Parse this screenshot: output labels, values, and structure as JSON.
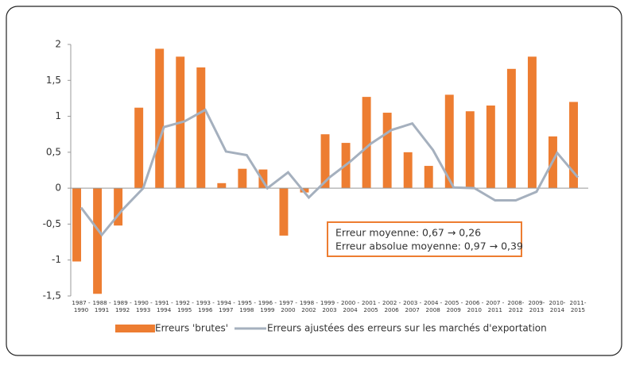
{
  "chart_data": {
    "type": "bar_line",
    "categories": [
      "1987 - 1990",
      "1988 - 1991",
      "1989 - 1992",
      "1990 - 1993",
      "1991 - 1994",
      "1992 - 1995",
      "1993 - 1996",
      "1994 - 1997",
      "1995 - 1998",
      "1996 - 1999",
      "1997 - 2000",
      "1998 - 2002",
      "1999 - 2003",
      "2000 - 2004",
      "2001 - 2005",
      "2002 - 2006",
      "2003 - 2007",
      "2004 - 2008",
      "2005 - 2009",
      "2006 - 2010",
      "2007 - 2011",
      "2008- 2012",
      "2009- 2013",
      "2010- 2014",
      "2011- 2015"
    ],
    "series": [
      {
        "name": "Erreurs 'brutes'",
        "type": "bar",
        "color": "#ed7d31",
        "values": [
          -1.02,
          -1.47,
          -0.52,
          1.12,
          1.94,
          1.83,
          1.68,
          0.07,
          0.27,
          0.26,
          -0.66,
          -0.06,
          0.75,
          0.63,
          1.27,
          1.05,
          0.5,
          0.31,
          1.3,
          1.07,
          1.15,
          1.66,
          1.83,
          0.72,
          1.2
        ]
      },
      {
        "name": "Erreurs ajustées des erreurs sur les marchés d'exportation",
        "type": "line",
        "color": "#a5b0be",
        "values": [
          -0.27,
          -0.65,
          -0.3,
          0.0,
          0.85,
          0.93,
          1.09,
          0.51,
          0.46,
          0.0,
          0.22,
          -0.13,
          0.15,
          0.37,
          0.62,
          0.81,
          0.9,
          0.53,
          0.01,
          0.0,
          -0.17,
          -0.17,
          -0.05,
          0.49,
          0.15
        ]
      }
    ],
    "ylim": [
      -1.5,
      2
    ],
    "yticks": [
      {
        "value": -1.5,
        "label": "-1,5"
      },
      -1,
      {
        "value": -0.5,
        "label": "-0,5"
      },
      0,
      {
        "value": 0.5,
        "label": "0,5"
      },
      1,
      {
        "value": 1.5,
        "label": "1,5"
      },
      2
    ],
    "annotations": [
      "Erreur moyenne: 0,67 → 0,26",
      "Erreur absolue moyenne: 0,97 → 0,39"
    ]
  }
}
